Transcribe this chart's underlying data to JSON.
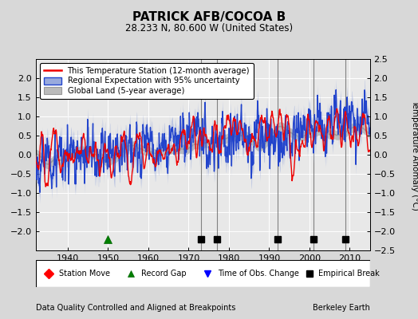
{
  "title": "PATRICK AFB/COCOA B",
  "subtitle": "28.233 N, 80.600 W (United States)",
  "ylabel": "Temperature Anomaly (°C)",
  "footer_left": "Data Quality Controlled and Aligned at Breakpoints",
  "footer_right": "Berkeley Earth",
  "xlim": [
    1932,
    2015
  ],
  "ylim": [
    -2.5,
    2.5
  ],
  "yticks_left": [
    -2,
    -1.5,
    -1,
    -0.5,
    0,
    0.5,
    1,
    1.5,
    2
  ],
  "yticks_right": [
    -2.5,
    -2,
    -1.5,
    -1,
    -0.5,
    0,
    0.5,
    1,
    1.5,
    2,
    2.5
  ],
  "xticks": [
    1940,
    1950,
    1960,
    1970,
    1980,
    1990,
    2000,
    2010
  ],
  "record_gap_years": [
    1950
  ],
  "empirical_break_years": [
    1973,
    1977,
    1992,
    2001,
    2009
  ],
  "station_move_years": [],
  "time_obs_change_years": [],
  "fig_bg_color": "#d8d8d8",
  "plot_bg_color": "#e8e8e8",
  "station_line_color": "#ee0000",
  "regional_line_color": "#2244cc",
  "regional_fill_color": "#99aadd",
  "global_line_color": "#999999",
  "global_fill_color": "#bbbbbb",
  "grid_color": "#ffffff",
  "vline_color": "#555555",
  "seed": 123
}
